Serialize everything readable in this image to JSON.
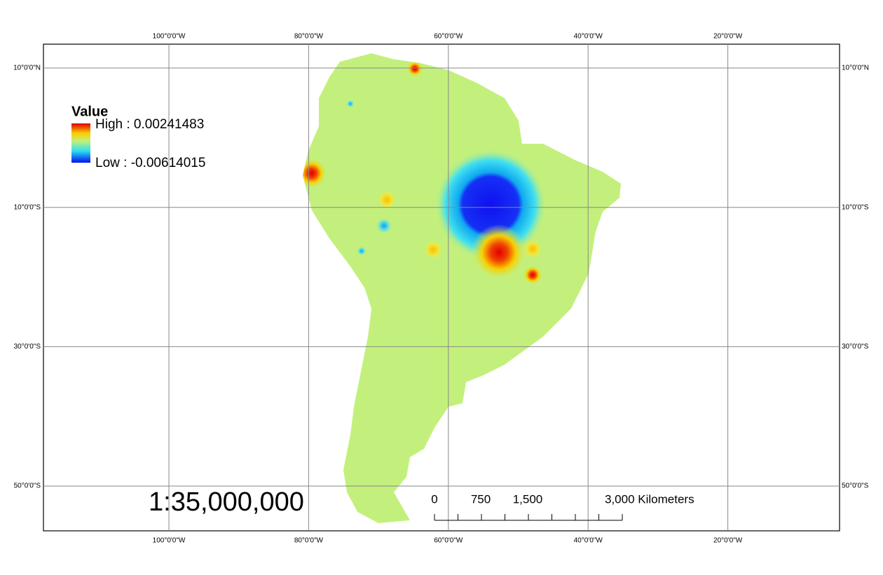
{
  "graticule": {
    "longitudes": [
      "100°0'0\"W",
      "80°0'0\"W",
      "60°0'0\"W",
      "40°0'0\"W",
      "20°0'0\"W"
    ],
    "latitudes": [
      "10°0'0\"N",
      "10°0'0\"S",
      "30°0'0\"S",
      "50°0'0\"S"
    ]
  },
  "legend": {
    "title": "Value",
    "high": "High : 0.00241483",
    "low": "Low : -0.00614015"
  },
  "scale_text": "1:35,000,000",
  "scale_bar": {
    "labels": [
      "0",
      "750",
      "1,500",
      "3,000 Kilometers"
    ]
  }
}
